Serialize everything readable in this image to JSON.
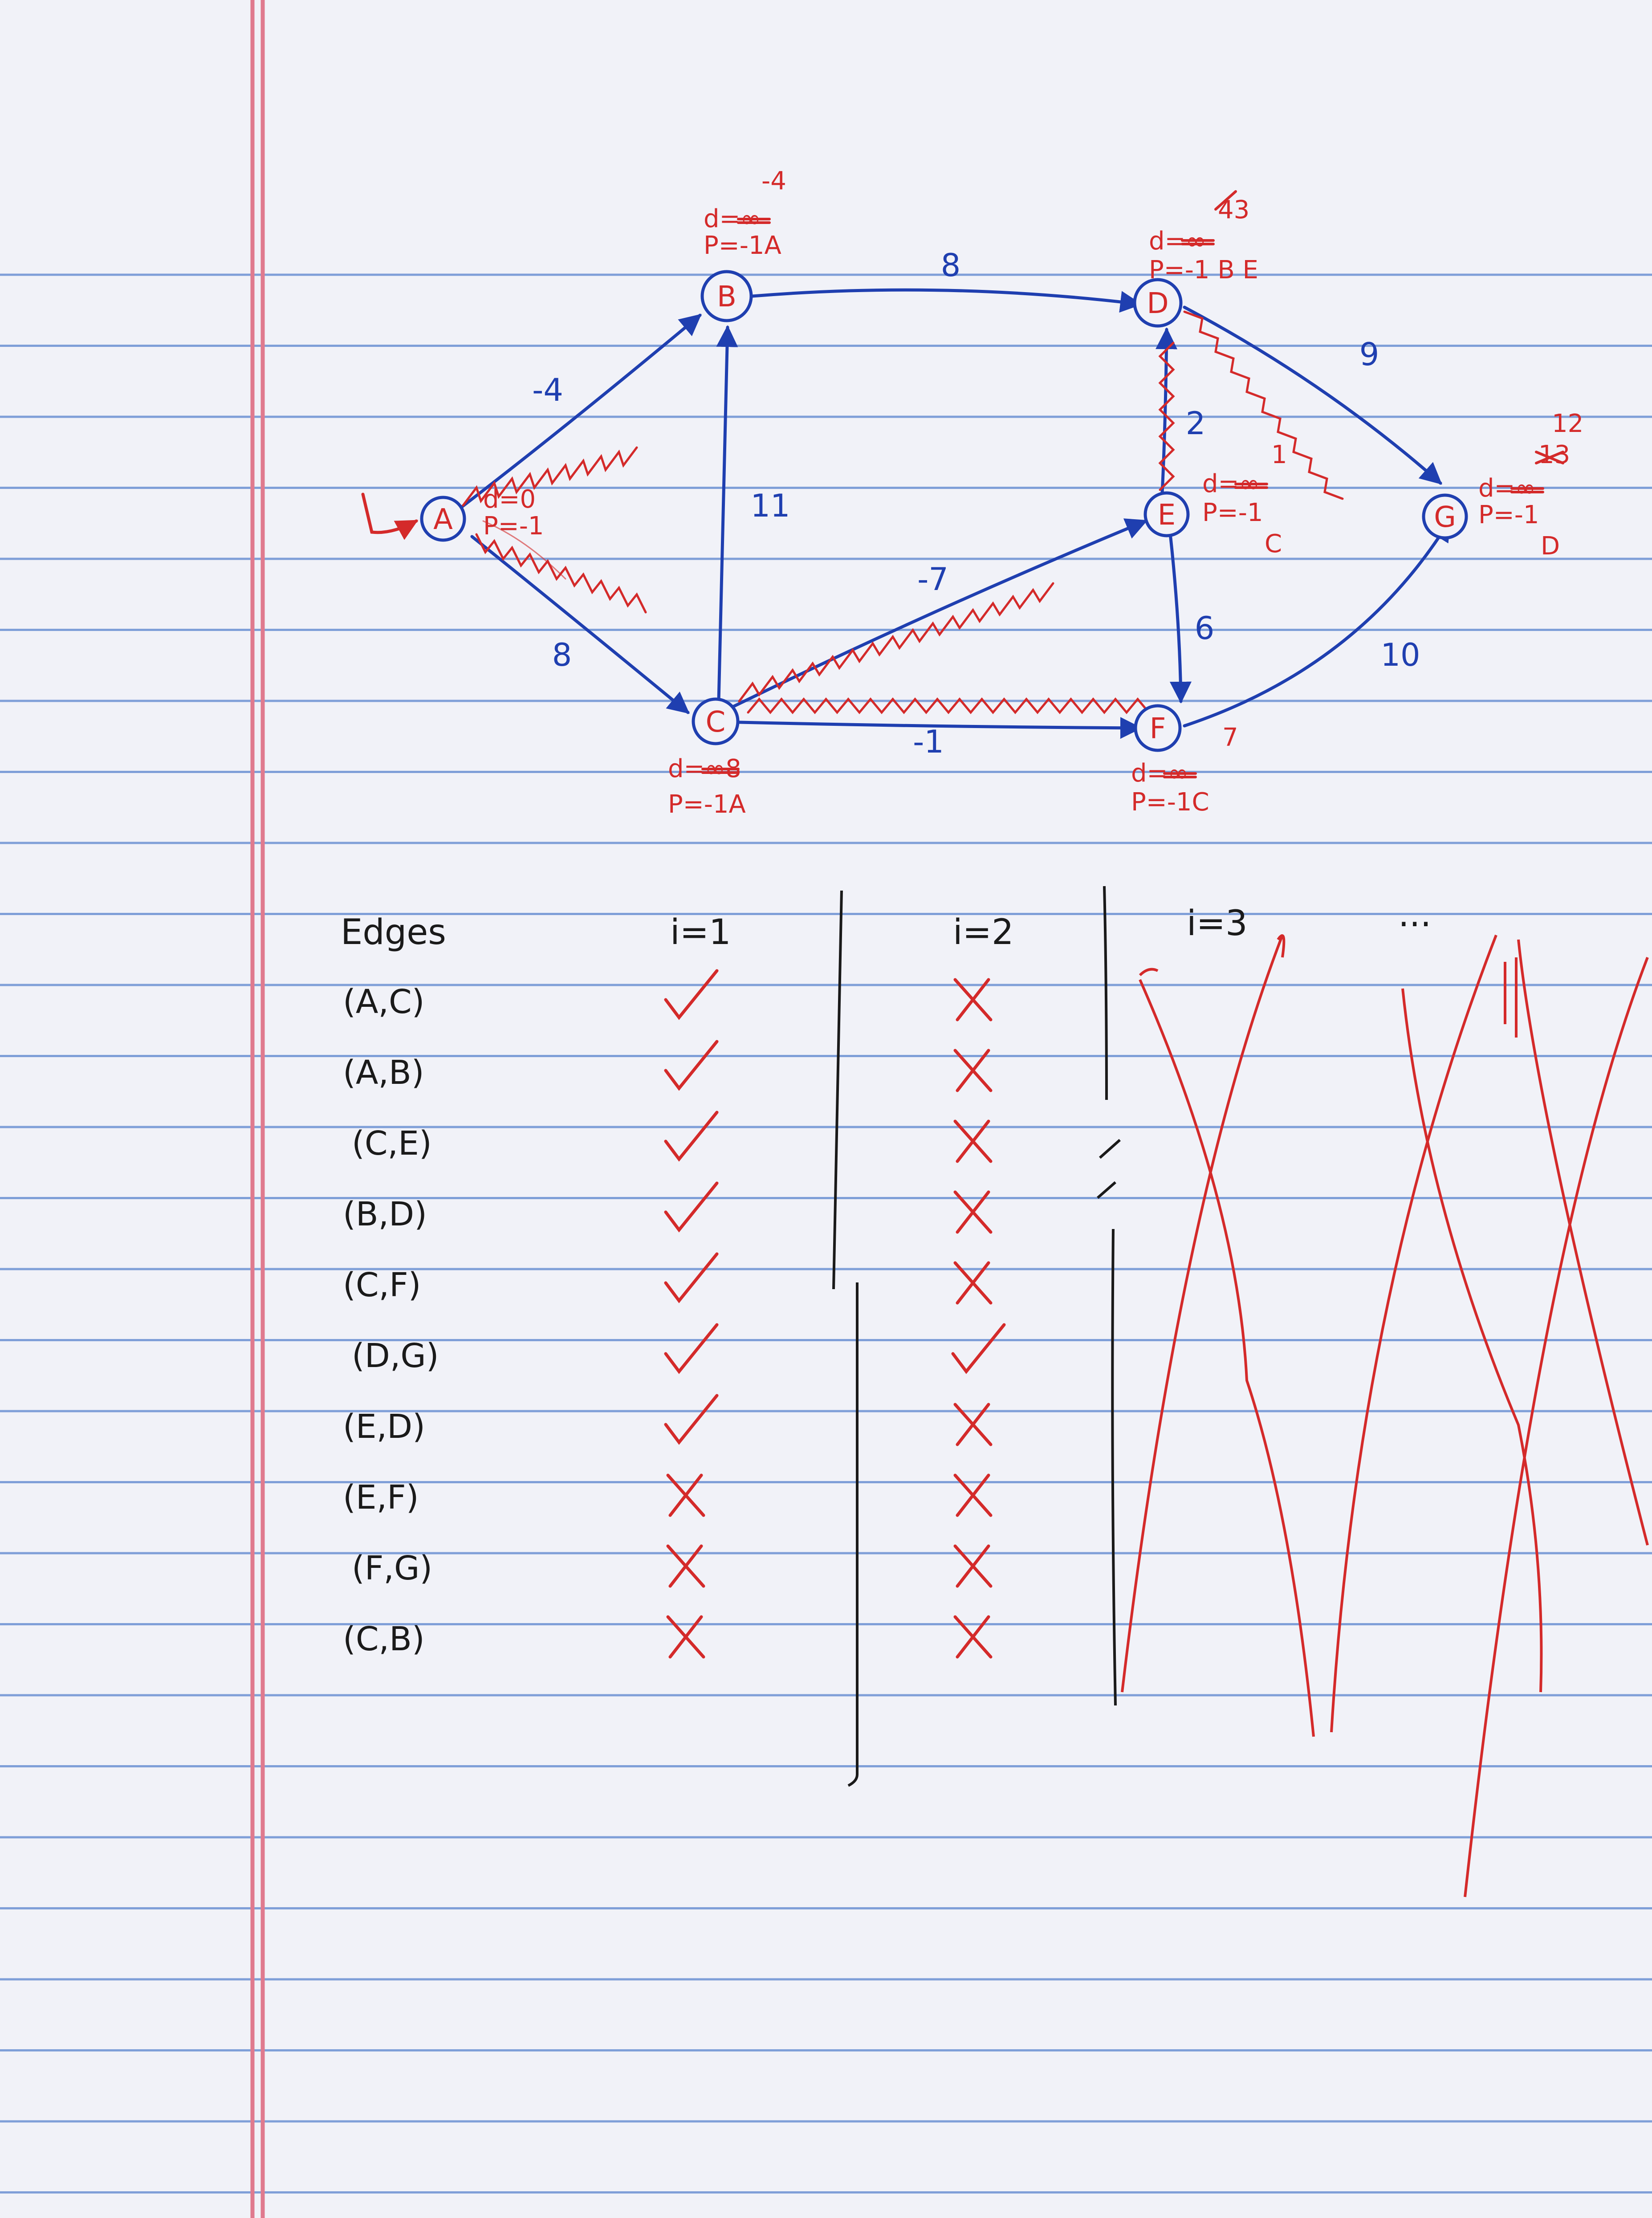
{
  "colors": {
    "paper": "#f1f2f8",
    "rule_line": "#7f9fd8",
    "margin_line": "#e07a8e",
    "graph_ink": "#1f3fb0",
    "annotation_ink": "#d42a2a",
    "table_ink": "#1a1a1a"
  },
  "graph": {
    "start_arrow_icon": "start-arrow-icon",
    "nodes": [
      {
        "id": "A",
        "label": "A",
        "d_line": "d=0",
        "p_line": "P=-1"
      },
      {
        "id": "B",
        "label": "B",
        "d_new": "-4",
        "d_line": "d=∞",
        "p_line": "P=-1A"
      },
      {
        "id": "C",
        "label": "C",
        "d_line": "d=∞8",
        "p_line": "P=-1A"
      },
      {
        "id": "D",
        "label": "D",
        "d_new": "43",
        "d_line": "d=∞",
        "p_line": "P=-1 B E"
      },
      {
        "id": "E",
        "label": "E",
        "d_new": "1",
        "d_line": "d=∞",
        "p_line": "P=-1",
        "p_new": "C"
      },
      {
        "id": "F",
        "label": "F",
        "d_new": "7",
        "d_line": "d=∞",
        "p_line": "P=-1C"
      },
      {
        "id": "G",
        "label": "G",
        "d_new": "12",
        "d_old": "13",
        "d_line": "d=∞",
        "p_line": "P=-1",
        "p_new": "D"
      }
    ],
    "edges": [
      {
        "from": "A",
        "to": "B",
        "weight": "-4"
      },
      {
        "from": "A",
        "to": "C",
        "weight": "8"
      },
      {
        "from": "C",
        "to": "B",
        "weight": "11"
      },
      {
        "from": "B",
        "to": "D",
        "weight": "8"
      },
      {
        "from": "C",
        "to": "E",
        "weight": "-7"
      },
      {
        "from": "C",
        "to": "F",
        "weight": "-1"
      },
      {
        "from": "E",
        "to": "D",
        "weight": "2"
      },
      {
        "from": "D",
        "to": "G",
        "weight": "9"
      },
      {
        "from": "E",
        "to": "F",
        "weight": "6"
      },
      {
        "from": "F",
        "to": "G",
        "weight": "10"
      }
    ]
  },
  "table": {
    "header": {
      "edges": "Edges",
      "i1": "i=1",
      "i2": "i=2",
      "i3": "i=3",
      "more": "..."
    },
    "rows": [
      {
        "edge": "(A,C)",
        "i1": "check",
        "i2": "x"
      },
      {
        "edge": "(A,B)",
        "i1": "check",
        "i2": "x"
      },
      {
        "edge": "(C,E)",
        "i1": "check",
        "i2": "x"
      },
      {
        "edge": "(B,D)",
        "i1": "check",
        "i2": "x"
      },
      {
        "edge": "(C,F)",
        "i1": "check",
        "i2": "x"
      },
      {
        "edge": "(D,G)",
        "i1": "check",
        "i2": "check"
      },
      {
        "edge": "(E,D)",
        "i1": "check",
        "i2": "x"
      },
      {
        "edge": "(E,F)",
        "i1": "x",
        "i2": "x"
      },
      {
        "edge": "(F,G)",
        "i1": "x",
        "i2": "x"
      },
      {
        "edge": "(C,B)",
        "i1": "x",
        "i2": "x"
      }
    ]
  }
}
